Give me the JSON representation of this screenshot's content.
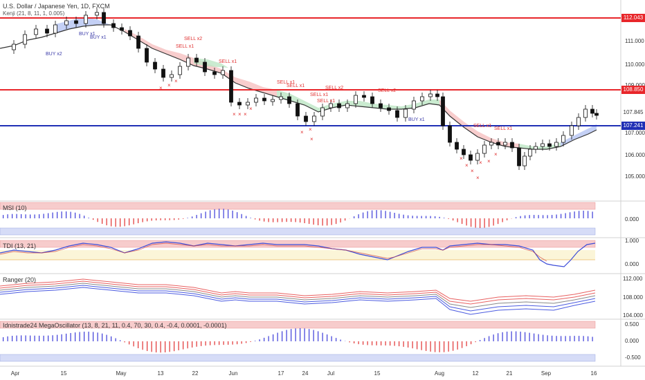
{
  "header": {
    "title": "U.S. Dollar / Japanese Yen, 1D, FXCM",
    "indicator": "Kenji (21, 8, 11, 1, 0.005)"
  },
  "price_axis": {
    "labels": [
      "111.000",
      "110.000",
      "109.000",
      "107.000",
      "106.000",
      "105.000"
    ],
    "badges": [
      {
        "value": "112.043",
        "color": "#e8262a"
      },
      {
        "value": "108.850",
        "color": "#e8262a"
      },
      {
        "value": "107.845",
        "color": "#ffffff"
      },
      {
        "value": "107.241",
        "color": "#1f2fb5"
      }
    ]
  },
  "horizontal_levels": [
    {
      "price": 112.043,
      "color": "#e8262a"
    },
    {
      "price": 108.85,
      "color": "#e8262a"
    },
    {
      "price": 107.241,
      "color": "#1f2fb5"
    }
  ],
  "signals": [
    {
      "text": "BUY x2",
      "kind": "buy"
    },
    {
      "text": "BUY x1",
      "kind": "buy"
    },
    {
      "text": "BUY x1",
      "kind": "buy"
    },
    {
      "text": "SELL x2",
      "kind": "sell"
    },
    {
      "text": "SELL x1",
      "kind": "sell"
    },
    {
      "text": "SELL x1",
      "kind": "sell"
    },
    {
      "text": "SELL x1",
      "kind": "sell"
    },
    {
      "text": "SELL x1",
      "kind": "sell"
    },
    {
      "text": "SELL x1",
      "kind": "sell"
    },
    {
      "text": "SELL x2",
      "kind": "sell"
    },
    {
      "text": "SELL x1",
      "kind": "sell"
    },
    {
      "text": "SELL x2",
      "kind": "sell"
    },
    {
      "text": "BUY x1",
      "kind": "buy"
    },
    {
      "text": "SELL x1",
      "kind": "sell"
    },
    {
      "text": "SELL x1",
      "kind": "sell"
    }
  ],
  "panels": {
    "msi": {
      "title": "MSI (10)",
      "labels": [
        "0.000"
      ]
    },
    "tdi": {
      "title": "TDI (13, 21)",
      "labels": [
        "1.000",
        "0.000"
      ]
    },
    "ranger": {
      "title": "Ranger (20)",
      "labels": [
        "112.000",
        "108.000",
        "104.000"
      ]
    },
    "mega": {
      "title": "Idnistrade24 MegaOscillator (13, 8, 21, 11, 0.4, 70, 30, 0.4, -0.4, 0.0001, -0.0001)",
      "labels": [
        "0.500",
        "0.000",
        "-0.500"
      ]
    }
  },
  "time_axis": [
    "Apr",
    "15",
    "May",
    "13",
    "22",
    "Jun",
    "17",
    "24",
    "Jul",
    "15",
    "Aug",
    "12",
    "21",
    "Sep",
    "16"
  ],
  "colors": {
    "bull": "#ffffff",
    "bear": "#111111",
    "buy": "#3a3aa8",
    "sell": "#e03030",
    "kenji_line": "#333333",
    "band_red": "#f5b8b8",
    "band_green": "#bde6c4",
    "band_blue": "#b5c4f2"
  }
}
